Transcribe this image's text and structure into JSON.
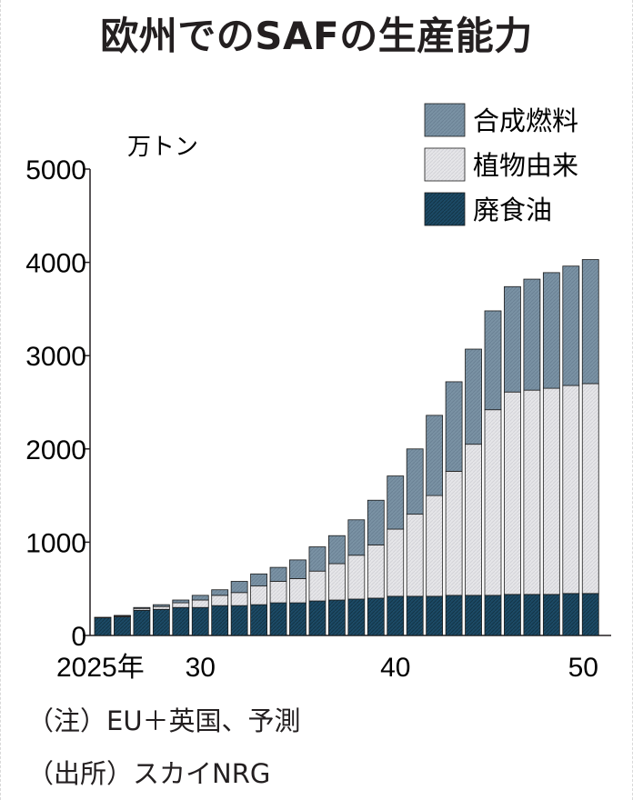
{
  "title": "欧州でのSAFの生産能力",
  "notes": {
    "note1": "（注）EU＋英国、予測",
    "note2": "（出所）スカイNRG"
  },
  "chart_data": {
    "type": "bar",
    "stacked": true,
    "unit_label": "万トン",
    "x": [
      2025,
      2026,
      2027,
      2028,
      2029,
      2030,
      2031,
      2032,
      2033,
      2034,
      2035,
      2036,
      2037,
      2038,
      2039,
      2040,
      2041,
      2042,
      2043,
      2044,
      2045,
      2046,
      2047,
      2048,
      2049,
      2050
    ],
    "x_tick_labels": [
      {
        "x": 2025,
        "label": "2025年"
      },
      {
        "x": 2030,
        "label": "30"
      },
      {
        "x": 2040,
        "label": "40"
      },
      {
        "x": 2050,
        "label": "50"
      }
    ],
    "ylim": [
      0,
      5000
    ],
    "y_ticks": [
      0,
      1000,
      2000,
      3000,
      4000,
      5000
    ],
    "legend_position": "top-right",
    "series": [
      {
        "name": "廃食油",
        "color": "#1c4a66",
        "values": [
          190,
          200,
          270,
          280,
          300,
          300,
          320,
          320,
          330,
          350,
          350,
          370,
          380,
          390,
          400,
          420,
          420,
          420,
          430,
          430,
          430,
          440,
          440,
          440,
          450,
          450
        ]
      },
      {
        "name": "植物由来",
        "color": "#e3e3e6",
        "values": [
          5,
          10,
          20,
          30,
          50,
          80,
          110,
          140,
          200,
          230,
          260,
          320,
          390,
          470,
          570,
          720,
          880,
          1080,
          1330,
          1620,
          1990,
          2170,
          2190,
          2210,
          2230,
          2250
        ]
      },
      {
        "name": "合成燃料",
        "color": "#7991a3",
        "values": [
          0,
          5,
          10,
          20,
          30,
          50,
          60,
          120,
          130,
          150,
          200,
          260,
          300,
          380,
          480,
          570,
          700,
          860,
          960,
          1020,
          1060,
          1130,
          1190,
          1240,
          1280,
          1330
        ]
      }
    ]
  }
}
